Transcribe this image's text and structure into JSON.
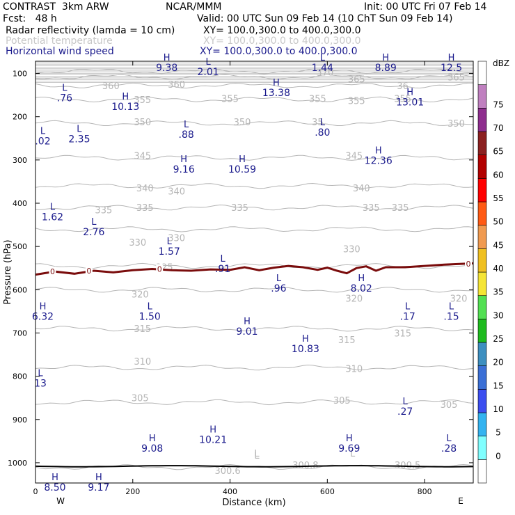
{
  "header": {
    "model": "CONTRAST  3km ARW",
    "org": "NCAR/MMM",
    "init": "Init: 00 UTC Fri 07 Feb 14",
    "fcst": "Fcst:   48 h",
    "valid": "Valid: 00 UTC Sun 09 Feb 14 (10 ChT Sun 09 Feb 14)",
    "fields": [
      {
        "name": "Radar reflectivity (lamda = 10 cm)",
        "xy": "XY= 100.0,300.0 to 400.0,300.0",
        "color": "#000000"
      },
      {
        "name": "Potential temperature",
        "xy": "XY= 100.0,300.0 to 400.0,300.0",
        "color": "#c8c8c8"
      },
      {
        "name": "Horizontal wind speed",
        "xy": "XY= 100.0,300.0 to 400.0,300.0",
        "color": "#1a1a8c"
      }
    ]
  },
  "chart_data": {
    "type": "line",
    "xlabel": "Distance (km)",
    "ylabel": "Pressure (hPa)",
    "xlim": [
      0,
      900
    ],
    "ylim": [
      1050,
      50
    ],
    "xticks": [
      0,
      200,
      400,
      600,
      800
    ],
    "yticks": [
      100,
      200,
      300,
      400,
      500,
      600,
      700,
      800,
      900,
      1000
    ],
    "x_end_labels": {
      "left": "W",
      "right": "E"
    },
    "theta_isentropes": [
      {
        "label": "300.6",
        "p": 1010
      },
      {
        "label": "305",
        "p": 860
      },
      {
        "label": "310",
        "p": 780
      },
      {
        "label": "315",
        "p": 690
      },
      {
        "label": "320",
        "p": 600
      },
      {
        "label": "325",
        "p": 545
      },
      {
        "label": "330",
        "p": 460
      },
      {
        "label": "335",
        "p": 410
      },
      {
        "label": "340",
        "p": 360
      },
      {
        "label": "345",
        "p": 295
      },
      {
        "label": "350",
        "p": 215
      },
      {
        "label": "355",
        "p": 160
      },
      {
        "label": "360",
        "p": 128
      },
      {
        "label": "365",
        "p": 108
      },
      {
        "label": "370",
        "p": 95
      }
    ],
    "theta_labels": [
      {
        "text": "360",
        "x": 155,
        "p": 128
      },
      {
        "text": "360",
        "x": 290,
        "p": 125
      },
      {
        "text": "365",
        "x": 660,
        "p": 113
      },
      {
        "text": "36",
        "x": 755,
        "p": 128
      },
      {
        "text": "365",
        "x": 865,
        "p": 108
      },
      {
        "text": "370",
        "x": 595,
        "p": 97
      },
      {
        "text": "355",
        "x": 220,
        "p": 160
      },
      {
        "text": "355",
        "x": 400,
        "p": 158
      },
      {
        "text": "355",
        "x": 580,
        "p": 158
      },
      {
        "text": "355",
        "x": 660,
        "p": 163
      },
      {
        "text": "355",
        "x": 755,
        "p": 158
      },
      {
        "text": "350",
        "x": 220,
        "p": 212
      },
      {
        "text": "350",
        "x": 425,
        "p": 212
      },
      {
        "text": "35",
        "x": 580,
        "p": 212
      },
      {
        "text": "350",
        "x": 865,
        "p": 215
      },
      {
        "text": "345",
        "x": 220,
        "p": 290
      },
      {
        "text": "345",
        "x": 655,
        "p": 290
      },
      {
        "text": "340",
        "x": 225,
        "p": 365
      },
      {
        "text": "340",
        "x": 290,
        "p": 372
      },
      {
        "text": "340",
        "x": 670,
        "p": 365
      },
      {
        "text": "335",
        "x": 140,
        "p": 415
      },
      {
        "text": "335",
        "x": 225,
        "p": 410
      },
      {
        "text": "335",
        "x": 420,
        "p": 410
      },
      {
        "text": "335",
        "x": 690,
        "p": 410
      },
      {
        "text": "335",
        "x": 750,
        "p": 410
      },
      {
        "text": "330",
        "x": 210,
        "p": 490
      },
      {
        "text": "330",
        "x": 290,
        "p": 480
      },
      {
        "text": "330",
        "x": 650,
        "p": 505
      },
      {
        "text": "325",
        "x": 265,
        "p": 547
      },
      {
        "text": "320",
        "x": 215,
        "p": 610
      },
      {
        "text": "320",
        "x": 655,
        "p": 620
      },
      {
        "text": "320",
        "x": 870,
        "p": 620
      },
      {
        "text": "315",
        "x": 220,
        "p": 690
      },
      {
        "text": "315",
        "x": 640,
        "p": 715
      },
      {
        "text": "315",
        "x": 755,
        "p": 700
      },
      {
        "text": "310",
        "x": 220,
        "p": 765
      },
      {
        "text": "310",
        "x": 655,
        "p": 782
      },
      {
        "text": "305",
        "x": 215,
        "p": 850
      },
      {
        "text": "305",
        "x": 630,
        "p": 855
      },
      {
        "text": "305",
        "x": 850,
        "p": 865
      },
      {
        "text": "300.8",
        "x": 555,
        "p": 1005
      },
      {
        "text": "300.5",
        "x": 765,
        "p": 1005
      },
      {
        "text": "300.6",
        "x": 395,
        "p": 1018
      }
    ],
    "theta_L_marks": [
      {
        "text": "L",
        "x": 455,
        "p": 995
      },
      {
        "text": "L",
        "x": 652,
        "p": 995
      },
      {
        "text": "L",
        "x": 455,
        "p": 1000
      }
    ],
    "freezing_level": {
      "label": "0",
      "color": "#7a0c0c",
      "p_mean": 557,
      "points": [
        [
          0,
          565
        ],
        [
          40,
          558
        ],
        [
          80,
          563
        ],
        [
          120,
          556
        ],
        [
          160,
          560
        ],
        [
          200,
          555
        ],
        [
          240,
          552
        ],
        [
          280,
          555
        ],
        [
          320,
          556
        ],
        [
          360,
          553
        ],
        [
          400,
          554
        ],
        [
          430,
          548
        ],
        [
          460,
          555
        ],
        [
          490,
          549
        ],
        [
          520,
          545
        ],
        [
          550,
          548
        ],
        [
          580,
          554
        ],
        [
          600,
          549
        ],
        [
          620,
          556
        ],
        [
          640,
          562
        ],
        [
          660,
          550
        ],
        [
          680,
          546
        ],
        [
          700,
          556
        ],
        [
          720,
          548
        ],
        [
          760,
          548
        ],
        [
          800,
          545
        ],
        [
          840,
          542
        ],
        [
          880,
          540
        ],
        [
          900,
          539
        ]
      ],
      "label_x": [
        35,
        110,
        255,
        890
      ]
    },
    "wind_extrema": [
      {
        "type": "H",
        "value": "9.38",
        "x": 270,
        "p": 70
      },
      {
        "type": "L",
        "value": "2.01",
        "x": 355,
        "p": 80
      },
      {
        "type": "L",
        "value": "1.44",
        "x": 590,
        "p": 70
      },
      {
        "type": "H",
        "value": "8.89",
        "x": 720,
        "p": 70
      },
      {
        "type": "H",
        "value": "12.5",
        "x": 855,
        "p": 70
      },
      {
        "type": "L",
        "value": ".76",
        "x": 60,
        "p": 140
      },
      {
        "type": "H",
        "value": "13.38",
        "x": 495,
        "p": 128
      },
      {
        "type": "H",
        "value": "10.13",
        "x": 185,
        "p": 160
      },
      {
        "type": "H",
        "value": "13.01",
        "x": 770,
        "p": 150
      },
      {
        "type": "L",
        "value": ".02",
        "x": 15,
        "p": 240
      },
      {
        "type": "L",
        "value": "2.35",
        "x": 90,
        "p": 235
      },
      {
        "type": "L",
        "value": ".88",
        "x": 310,
        "p": 225
      },
      {
        "type": "L",
        "value": ".80",
        "x": 590,
        "p": 220
      },
      {
        "type": "H",
        "value": "12.36",
        "x": 705,
        "p": 285
      },
      {
        "type": "H",
        "value": "9.16",
        "x": 305,
        "p": 305
      },
      {
        "type": "H",
        "value": "10.59",
        "x": 425,
        "p": 305
      },
      {
        "type": "L",
        "value": "1.62",
        "x": 35,
        "p": 415
      },
      {
        "type": "L",
        "value": "2.76",
        "x": 120,
        "p": 450
      },
      {
        "type": "L",
        "value": "1.57",
        "x": 275,
        "p": 495
      },
      {
        "type": "L",
        "value": ".91",
        "x": 385,
        "p": 535
      },
      {
        "type": "L",
        "value": ".96",
        "x": 500,
        "p": 580
      },
      {
        "type": "H",
        "value": "8.02",
        "x": 670,
        "p": 580
      },
      {
        "type": "H",
        "value": "6.32",
        "x": 15,
        "p": 645
      },
      {
        "type": "L",
        "value": "1.50",
        "x": 235,
        "p": 645
      },
      {
        "type": "L",
        "value": ".17",
        "x": 765,
        "p": 645
      },
      {
        "type": "L",
        "value": ".15",
        "x": 855,
        "p": 645
      },
      {
        "type": "H",
        "value": "9.01",
        "x": 435,
        "p": 680
      },
      {
        "type": "H",
        "value": "10.83",
        "x": 555,
        "p": 720
      },
      {
        "type": "L",
        "value": "13",
        "x": 10,
        "p": 800
      },
      {
        "type": "L",
        "value": ".27",
        "x": 760,
        "p": 865
      },
      {
        "type": "H",
        "value": "10.21",
        "x": 365,
        "p": 930
      },
      {
        "type": "H",
        "value": "9.08",
        "x": 240,
        "p": 950
      },
      {
        "type": "H",
        "value": "9.69",
        "x": 645,
        "p": 950
      },
      {
        "type": "L",
        "value": ".28",
        "x": 850,
        "p": 950
      },
      {
        "type": "H",
        "value": "8.50",
        "x": 40,
        "p": 1040
      },
      {
        "type": "H",
        "value": "9.17",
        "x": 130,
        "p": 1040
      }
    ],
    "terrain_p": 1008,
    "colorbar": {
      "unit": "dBZ",
      "levels": [
        0,
        5,
        10,
        15,
        20,
        25,
        30,
        35,
        40,
        45,
        50,
        55,
        60,
        65,
        70,
        75
      ],
      "colors": [
        "#ffffff",
        "#80ffff",
        "#33b3f0",
        "#3c4ef0",
        "#3b6fd6",
        "#3d8fc0",
        "#1ebb1e",
        "#52e052",
        "#f5e535",
        "#f0c020",
        "#f09a50",
        "#ff5a14",
        "#ff0000",
        "#b20000",
        "#8b2020",
        "#8e2d8e",
        "#c080c0",
        "#ffffff"
      ]
    }
  }
}
